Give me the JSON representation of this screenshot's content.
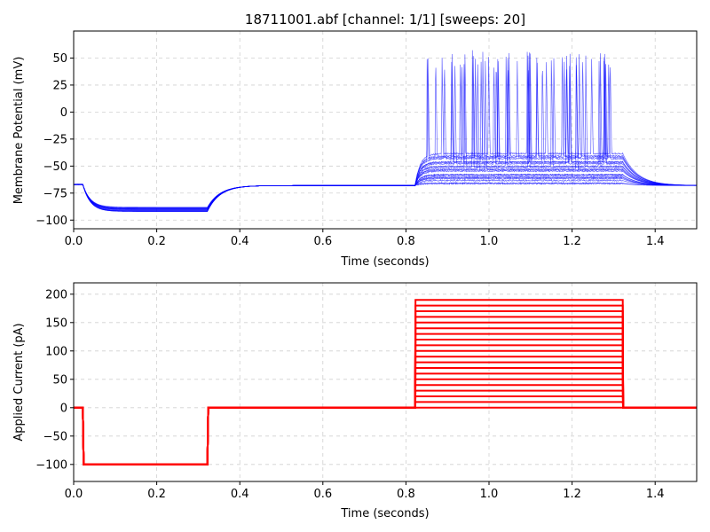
{
  "chart_data": [
    {
      "type": "line",
      "title": "18711001.abf [channel: 1/1] [sweeps: 20]",
      "xlabel": "Time (seconds)",
      "ylabel": "Membrane Potential (mV)",
      "xlim": [
        0,
        1.5
      ],
      "ylim": [
        -108,
        75
      ],
      "xticks": [
        0.0,
        0.2,
        0.4,
        0.6,
        0.8,
        1.0,
        1.2,
        1.4
      ],
      "xtick_labels": [
        "0.0",
        "0.2",
        "0.4",
        "0.6",
        "0.8",
        "1.0",
        "1.2",
        "1.4"
      ],
      "yticks": [
        50,
        25,
        0,
        -25,
        -50,
        -75,
        -100
      ],
      "ytick_labels": [
        "50",
        "25",
        "0",
        "−25",
        "−50",
        "−75",
        "−100"
      ],
      "grid": true,
      "color": "#0000ff",
      "sweeps": 20,
      "baseline_mV": -67,
      "hyperpolarized_mV": -90,
      "rest_mV": -68,
      "peak_mV": 59,
      "step_end_plateau_mV": -42,
      "segments_s": {
        "neg_step_start": 0.022,
        "neg_step_end": 0.322,
        "pos_step_start": 0.822,
        "pos_step_end": 1.322
      },
      "spike_times_s": [
        0.842,
        0.845,
        0.848,
        0.851,
        0.855,
        0.859,
        0.864,
        0.87,
        0.877,
        0.885,
        0.895,
        0.905,
        0.917,
        0.932,
        0.952,
        0.975,
        1.002,
        1.031,
        1.06,
        1.092,
        1.116,
        1.148,
        1.176,
        1.205,
        1.228,
        1.252,
        1.281,
        1.31
      ]
    },
    {
      "type": "line",
      "title": "",
      "xlabel": "Time (seconds)",
      "ylabel": "Applied Current (pA)",
      "xlim": [
        0,
        1.5
      ],
      "ylim": [
        -130,
        220
      ],
      "xticks": [
        0.0,
        0.2,
        0.4,
        0.6,
        0.8,
        1.0,
        1.2,
        1.4
      ],
      "xtick_labels": [
        "0.0",
        "0.2",
        "0.4",
        "0.6",
        "0.8",
        "1.0",
        "1.2",
        "1.4"
      ],
      "yticks": [
        200,
        150,
        100,
        50,
        0,
        -50,
        -100
      ],
      "ytick_labels": [
        "200",
        "150",
        "100",
        "50",
        "0",
        "−50",
        "−100"
      ],
      "grid": true,
      "color": "#ff0000",
      "holding_pA": 0,
      "neg_step_pA": -100,
      "step_levels_pA": [
        0,
        10,
        20,
        30,
        40,
        50,
        60,
        70,
        80,
        90,
        100,
        110,
        120,
        130,
        140,
        150,
        160,
        170,
        180,
        190
      ],
      "segments_s": {
        "neg_step_start": 0.022,
        "neg_step_end": 0.322,
        "pos_step_start": 0.822,
        "pos_step_end": 1.322
      }
    }
  ]
}
